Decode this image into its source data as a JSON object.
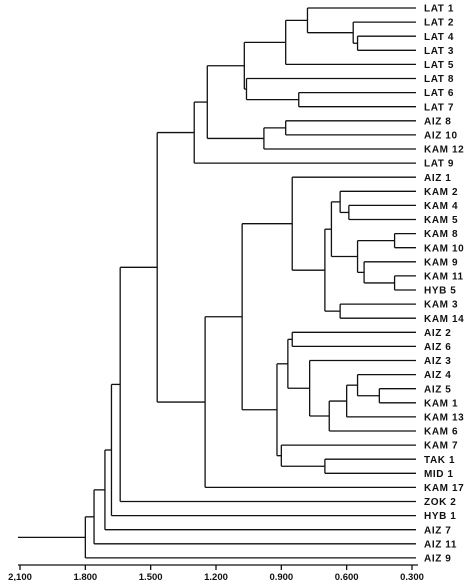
{
  "dendrogram": {
    "leaves": [
      "LAT 1",
      "LAT 2",
      "LAT 4",
      "LAT 3",
      "LAT 5",
      "LAT 8",
      "LAT 6",
      "LAT 7",
      "AIZ 8",
      "AIZ 10",
      "KAM 12",
      "LAT 9",
      "AIZ 1",
      "KAM 2",
      "KAM 4",
      "KAM 5",
      "KAM 8",
      "KAM 10",
      "KAM 9",
      "KAM 11",
      "HYB 5",
      "KAM 3",
      "KAM 14",
      "AIZ 2",
      "AIZ 6",
      "AIZ 3",
      "AIZ 4",
      "AIZ 5",
      "KAM 1",
      "KAM 13",
      "KAM 6",
      "KAM 7",
      "TAK 1",
      "MID 1",
      "KAM 17",
      "ZOK 2",
      "HYB 1",
      "AIZ 7",
      "AIZ 11",
      "AIZ 9"
    ],
    "merges": [
      {
        "a": 2,
        "b": 3,
        "d": 0.55
      },
      {
        "a": 1,
        "b": "m0",
        "d": 0.57
      },
      {
        "a": 0,
        "b": "m1",
        "d": 0.78
      },
      {
        "a": "m2",
        "b": 4,
        "d": 0.88
      },
      {
        "a": 6,
        "b": 7,
        "d": 0.82
      },
      {
        "a": 5,
        "b": "m4",
        "d": 1.06
      },
      {
        "a": "m3",
        "b": "m5",
        "d": 1.07
      },
      {
        "a": 8,
        "b": 9,
        "d": 0.88
      },
      {
        "a": "m7",
        "b": 10,
        "d": 0.98
      },
      {
        "a": "m6",
        "b": "m8",
        "d": 1.24
      },
      {
        "a": "m9",
        "b": 11,
        "d": 1.3
      },
      {
        "a": 14,
        "b": 15,
        "d": 0.59
      },
      {
        "a": 13,
        "b": "m11",
        "d": 0.63
      },
      {
        "a": 16,
        "b": 17,
        "d": 0.38
      },
      {
        "a": 19,
        "b": 20,
        "d": 0.38
      },
      {
        "a": 18,
        "b": "m14",
        "d": 0.52
      },
      {
        "a": "m13",
        "b": "m15",
        "d": 0.55
      },
      {
        "a": "m12",
        "b": "m16",
        "d": 0.67
      },
      {
        "a": 21,
        "b": 22,
        "d": 0.63
      },
      {
        "a": "m17",
        "b": "m18",
        "d": 0.7
      },
      {
        "a": 12,
        "b": "m19",
        "d": 0.85
      },
      {
        "a": 27,
        "b": 28,
        "d": 0.45
      },
      {
        "a": 26,
        "b": "m21",
        "d": 0.55
      },
      {
        "a": "m22",
        "b": 29,
        "d": 0.6
      },
      {
        "a": "m23",
        "b": 30,
        "d": 0.68
      },
      {
        "a": 25,
        "b": "m24",
        "d": 0.77
      },
      {
        "a": 23,
        "b": 24,
        "d": 0.85
      },
      {
        "a": "m26",
        "b": "m25",
        "d": 0.87
      },
      {
        "a": 32,
        "b": 33,
        "d": 0.7
      },
      {
        "a": 31,
        "b": "m28",
        "d": 0.9
      },
      {
        "a": "m27",
        "b": "m29",
        "d": 0.92
      },
      {
        "a": "m20",
        "b": "m30",
        "d": 1.08
      },
      {
        "a": "m31",
        "b": 34,
        "d": 1.25
      },
      {
        "a": "m10",
        "b": "m32",
        "d": 1.47
      },
      {
        "a": "m33",
        "b": 35,
        "d": 1.64
      },
      {
        "a": "m34",
        "b": 36,
        "d": 1.68
      },
      {
        "a": "m35",
        "b": 37,
        "d": 1.71
      },
      {
        "a": "m36",
        "b": 38,
        "d": 1.76
      },
      {
        "a": "m37",
        "b": 39,
        "d": 1.8
      },
      {
        "a": "m38",
        "b": "root",
        "d": 2.1
      }
    ],
    "axis": {
      "ticks": [
        "2,100",
        "1.800",
        "1.500",
        "1.200",
        "0.900",
        "0.600",
        "0.300"
      ],
      "tick_values": [
        2.1,
        1.8,
        1.5,
        1.2,
        0.9,
        0.6,
        0.3
      ],
      "min": 2.1,
      "max": 0.3
    }
  }
}
